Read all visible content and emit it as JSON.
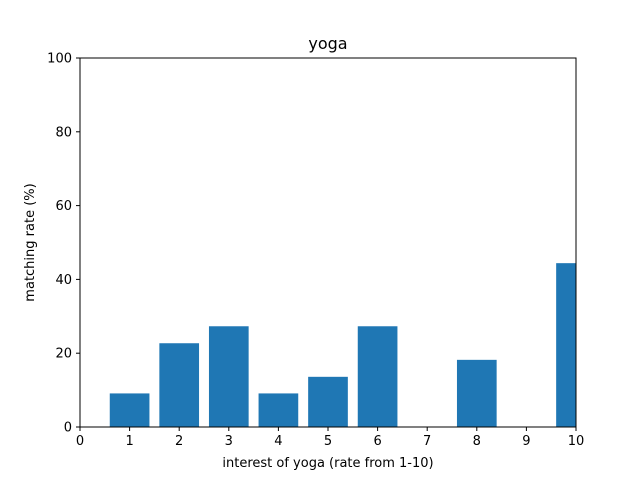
{
  "chart_data": {
    "type": "bar",
    "title": "yoga",
    "xlabel": "interest of yoga (rate from 1-10)",
    "ylabel": "matching rate (%)",
    "xlim": [
      0,
      10
    ],
    "ylim": [
      0,
      100
    ],
    "x": [
      1,
      2,
      3,
      4,
      5,
      6,
      7,
      8,
      9,
      10
    ],
    "values": [
      9.1,
      22.7,
      27.3,
      9.1,
      13.6,
      27.3,
      0,
      18.2,
      0,
      44.4
    ],
    "xticks": [
      "0",
      "1",
      "2",
      "3",
      "4",
      "5",
      "6",
      "7",
      "8",
      "9",
      "10"
    ],
    "yticks": [
      "0",
      "20",
      "40",
      "60",
      "80",
      "100"
    ],
    "bar_color": "#1f77b4",
    "grid": false,
    "legend": "none"
  }
}
